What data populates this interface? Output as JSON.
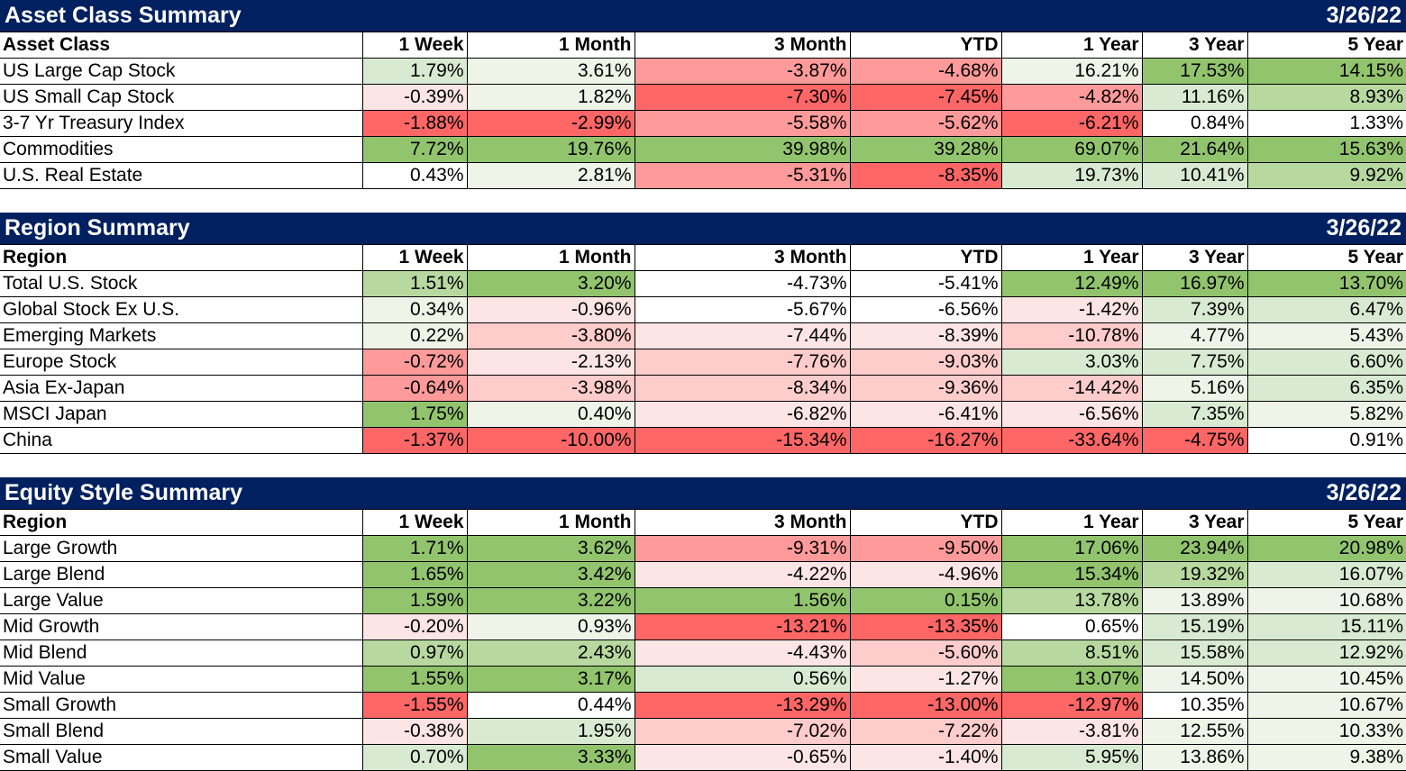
{
  "colors": {
    "header_bg": "#002060",
    "neg_strong": "#ff6666",
    "neg_mid": "#ff9a9a",
    "neg_light": "#ffcccc",
    "neg_faint": "#fde5e5",
    "neutral": "#ffffff",
    "pos_faint": "#eef5e8",
    "pos_light": "#d9ead3",
    "pos_mid": "#b7d9a0",
    "pos_strong": "#92c46e"
  },
  "sections": [
    {
      "title": "Asset Class Summary",
      "date": "3/26/22",
      "first_header": "Asset Class",
      "columns": [
        "1 Week",
        "1 Month",
        "3 Month",
        "YTD",
        "1 Year",
        "3 Year",
        "5 Year"
      ],
      "rows": [
        {
          "label": "US Large Cap Stock",
          "values": [
            "1.79%",
            "3.61%",
            "-3.87%",
            "-4.68%",
            "16.21%",
            "17.53%",
            "14.15%"
          ],
          "shades": [
            "pos_light",
            "pos_faint",
            "neg_mid",
            "neg_mid",
            "pos_faint",
            "pos_strong",
            "pos_strong"
          ]
        },
        {
          "label": "US Small Cap Stock",
          "values": [
            "-0.39%",
            "1.82%",
            "-7.30%",
            "-7.45%",
            "-4.82%",
            "11.16%",
            "8.93%"
          ],
          "shades": [
            "neg_faint",
            "pos_faint",
            "neg_strong",
            "neg_strong",
            "neg_mid",
            "pos_light",
            "pos_mid"
          ]
        },
        {
          "label": "3-7 Yr Treasury Index",
          "values": [
            "-1.88%",
            "-2.99%",
            "-5.58%",
            "-5.62%",
            "-6.21%",
            "0.84%",
            "1.33%"
          ],
          "shades": [
            "neg_strong",
            "neg_strong",
            "neg_mid",
            "neg_mid",
            "neg_strong",
            "neutral",
            "neutral"
          ]
        },
        {
          "label": "Commodities",
          "values": [
            "7.72%",
            "19.76%",
            "39.98%",
            "39.28%",
            "69.07%",
            "21.64%",
            "15.63%"
          ],
          "shades": [
            "pos_strong",
            "pos_strong",
            "pos_strong",
            "pos_strong",
            "pos_strong",
            "pos_strong",
            "pos_strong"
          ]
        },
        {
          "label": "U.S. Real Estate",
          "values": [
            "0.43%",
            "2.81%",
            "-5.31%",
            "-8.35%",
            "19.73%",
            "10.41%",
            "9.92%"
          ],
          "shades": [
            "neutral",
            "pos_faint",
            "neg_mid",
            "neg_strong",
            "pos_light",
            "pos_light",
            "pos_mid"
          ]
        }
      ]
    },
    {
      "title": "Region Summary",
      "date": "3/26/22",
      "first_header": "Region",
      "columns": [
        "1 Week",
        "1 Month",
        "3 Month",
        "YTD",
        "1 Year",
        "3 Year",
        "5 Year"
      ],
      "rows": [
        {
          "label": "Total U.S. Stock",
          "values": [
            "1.51%",
            "3.20%",
            "-4.73%",
            "-5.41%",
            "12.49%",
            "16.97%",
            "13.70%"
          ],
          "shades": [
            "pos_mid",
            "pos_strong",
            "neutral",
            "neutral",
            "pos_strong",
            "pos_strong",
            "pos_strong"
          ]
        },
        {
          "label": "Global Stock Ex U.S.",
          "values": [
            "0.34%",
            "-0.96%",
            "-5.67%",
            "-6.56%",
            "-1.42%",
            "7.39%",
            "6.47%"
          ],
          "shades": [
            "pos_faint",
            "neg_faint",
            "neutral",
            "neutral",
            "neg_faint",
            "pos_light",
            "pos_light"
          ]
        },
        {
          "label": "Emerging Markets",
          "values": [
            "0.22%",
            "-3.80%",
            "-7.44%",
            "-8.39%",
            "-10.78%",
            "4.77%",
            "5.43%"
          ],
          "shades": [
            "pos_faint",
            "neg_light",
            "neg_faint",
            "neg_faint",
            "neg_light",
            "pos_faint",
            "pos_faint"
          ]
        },
        {
          "label": "Europe Stock",
          "values": [
            "-0.72%",
            "-2.13%",
            "-7.76%",
            "-9.03%",
            "3.03%",
            "7.75%",
            "6.60%"
          ],
          "shades": [
            "neg_mid",
            "neg_faint",
            "neg_light",
            "neg_light",
            "pos_light",
            "pos_light",
            "pos_light"
          ]
        },
        {
          "label": "Asia Ex-Japan",
          "values": [
            "-0.64%",
            "-3.98%",
            "-8.34%",
            "-9.36%",
            "-14.42%",
            "5.16%",
            "6.35%"
          ],
          "shades": [
            "neg_mid",
            "neg_light",
            "neg_light",
            "neg_light",
            "neg_light",
            "pos_faint",
            "pos_light"
          ]
        },
        {
          "label": "MSCI Japan",
          "values": [
            "1.75%",
            "0.40%",
            "-6.82%",
            "-6.41%",
            "-6.56%",
            "7.35%",
            "5.82%"
          ],
          "shades": [
            "pos_strong",
            "pos_faint",
            "neg_faint",
            "neg_faint",
            "neg_faint",
            "pos_light",
            "pos_faint"
          ]
        },
        {
          "label": "China",
          "values": [
            "-1.37%",
            "-10.00%",
            "-15.34%",
            "-16.27%",
            "-33.64%",
            "-4.75%",
            "0.91%"
          ],
          "shades": [
            "neg_strong",
            "neg_strong",
            "neg_strong",
            "neg_strong",
            "neg_strong",
            "neg_strong",
            "neutral"
          ]
        }
      ]
    },
    {
      "title": "Equity Style Summary",
      "date": "3/26/22",
      "first_header": "Region",
      "columns": [
        "1 Week",
        "1 Month",
        "3 Month",
        "YTD",
        "1 Year",
        "3 Year",
        "5 Year"
      ],
      "rows": [
        {
          "label": "Large Growth",
          "values": [
            "1.71%",
            "3.62%",
            "-9.31%",
            "-9.50%",
            "17.06%",
            "23.94%",
            "20.98%"
          ],
          "shades": [
            "pos_strong",
            "pos_strong",
            "neg_mid",
            "neg_mid",
            "pos_strong",
            "pos_strong",
            "pos_strong"
          ]
        },
        {
          "label": "Large Blend",
          "values": [
            "1.65%",
            "3.42%",
            "-4.22%",
            "-4.96%",
            "15.34%",
            "19.32%",
            "16.07%"
          ],
          "shades": [
            "pos_strong",
            "pos_strong",
            "neg_faint",
            "neg_faint",
            "pos_strong",
            "pos_mid",
            "pos_light"
          ]
        },
        {
          "label": "Large Value",
          "values": [
            "1.59%",
            "3.22%",
            "1.56%",
            "0.15%",
            "13.78%",
            "13.89%",
            "10.68%"
          ],
          "shades": [
            "pos_strong",
            "pos_strong",
            "pos_strong",
            "pos_strong",
            "pos_mid",
            "pos_faint",
            "pos_faint"
          ]
        },
        {
          "label": "Mid Growth",
          "values": [
            "-0.20%",
            "0.93%",
            "-13.21%",
            "-13.35%",
            "0.65%",
            "15.19%",
            "15.11%"
          ],
          "shades": [
            "neg_faint",
            "pos_faint",
            "neg_strong",
            "neg_strong",
            "neutral",
            "pos_light",
            "pos_light"
          ]
        },
        {
          "label": "Mid Blend",
          "values": [
            "0.97%",
            "2.43%",
            "-4.43%",
            "-5.60%",
            "8.51%",
            "15.58%",
            "12.92%"
          ],
          "shades": [
            "pos_mid",
            "pos_mid",
            "neg_faint",
            "neg_light",
            "pos_mid",
            "pos_light",
            "pos_light"
          ]
        },
        {
          "label": "Mid Value",
          "values": [
            "1.55%",
            "3.17%",
            "0.56%",
            "-1.27%",
            "13.07%",
            "14.50%",
            "10.45%"
          ],
          "shades": [
            "pos_strong",
            "pos_strong",
            "pos_light",
            "neg_faint",
            "pos_strong",
            "pos_faint",
            "pos_faint"
          ]
        },
        {
          "label": "Small Growth",
          "values": [
            "-1.55%",
            "0.44%",
            "-13.29%",
            "-13.00%",
            "-12.97%",
            "10.35%",
            "10.67%"
          ],
          "shades": [
            "neg_strong",
            "neutral",
            "neg_strong",
            "neg_strong",
            "neg_strong",
            "neutral",
            "pos_faint"
          ]
        },
        {
          "label": "Small Blend",
          "values": [
            "-0.38%",
            "1.95%",
            "-7.02%",
            "-7.22%",
            "-3.81%",
            "12.55%",
            "10.33%"
          ],
          "shades": [
            "neg_faint",
            "pos_light",
            "neg_light",
            "neg_light",
            "neg_faint",
            "pos_faint",
            "pos_faint"
          ]
        },
        {
          "label": "Small Value",
          "values": [
            "0.70%",
            "3.33%",
            "-0.65%",
            "-1.40%",
            "5.95%",
            "13.86%",
            "9.38%"
          ],
          "shades": [
            "pos_light",
            "pos_strong",
            "neg_faint",
            "neg_faint",
            "pos_light",
            "pos_faint",
            "pos_faint"
          ]
        }
      ]
    }
  ]
}
